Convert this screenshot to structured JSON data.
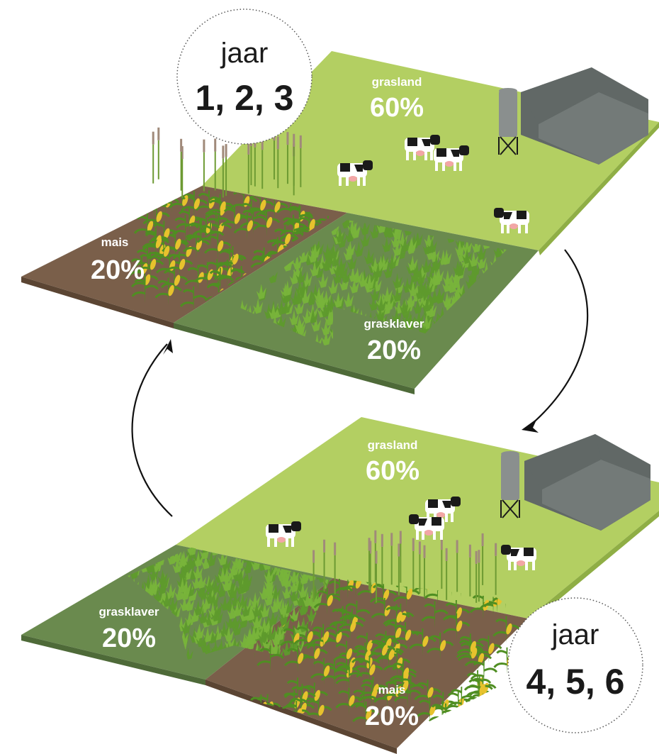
{
  "colors": {
    "grassland": "#b3cf62",
    "grassland_edge": "#8fae45",
    "clover_field": "#6a8a4e",
    "clover_edge": "#4e6a38",
    "clover_plants": "#5e9a2c",
    "corn_field": "#7a5f4a",
    "corn_edge": "#5b4533",
    "corn_leaf": "#4f8e22",
    "corn_cob": "#e7c22d",
    "barn": "#616866",
    "barn_roof_light": "#737a78",
    "silo": "#8a8f8e",
    "cow_black": "#1a1a1a",
    "cow_white": "#ffffff",
    "udder": "#f2a6a6",
    "arrow": "#111111"
  },
  "icons": [
    "cow-icon",
    "barn-icon",
    "silo-icon",
    "corn-plant-icon",
    "clover-icon",
    "cycle-arrow-icon"
  ],
  "top_scene": {
    "jaar": {
      "word": "jaar",
      "years": "1, 2, 3"
    },
    "grasland": {
      "name": "grasland",
      "pct": "60%"
    },
    "mais": {
      "name": "mais",
      "pct": "20%"
    },
    "grasklaver": {
      "name": "grasklaver",
      "pct": "20%"
    }
  },
  "bottom_scene": {
    "jaar": {
      "word": "jaar",
      "years": "4, 5, 6"
    },
    "grasland": {
      "name": "grasland",
      "pct": "60%"
    },
    "mais": {
      "name": "mais",
      "pct": "20%"
    },
    "grasklaver": {
      "name": "grasklaver",
      "pct": "20%"
    }
  }
}
